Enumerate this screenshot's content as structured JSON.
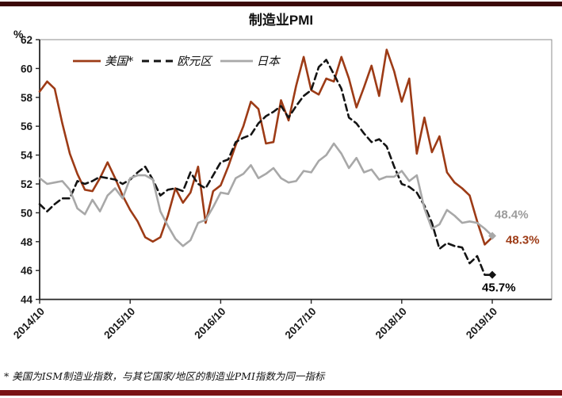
{
  "page": {
    "title": "制造业PMI",
    "footnote": "* 美国为ISM制造业指数，与其它国家/地区的制造业PMI指数为同一指标",
    "top_bar_color": "#3c080a",
    "bottom_bar_color": "#7a1315"
  },
  "chart_data": {
    "type": "line",
    "title": "制造业PMI",
    "ylabel": "%",
    "xlabel": "",
    "ylim": [
      44,
      62
    ],
    "yticks": [
      62,
      60,
      58,
      56,
      54,
      52,
      50,
      48,
      46,
      44
    ],
    "grid": false,
    "legend_position": "top-left-inside",
    "xticks": [
      "2014/10",
      "2015/10",
      "2016/10",
      "2017/10",
      "2018/10",
      "2019/10"
    ],
    "xtick_month_indices": [
      0,
      12,
      24,
      36,
      48,
      60
    ],
    "x_months": [
      "2014/10",
      "2014/11",
      "2014/12",
      "2015/01",
      "2015/02",
      "2015/03",
      "2015/04",
      "2015/05",
      "2015/06",
      "2015/07",
      "2015/08",
      "2015/09",
      "2015/10",
      "2015/11",
      "2015/12",
      "2016/01",
      "2016/02",
      "2016/03",
      "2016/04",
      "2016/05",
      "2016/06",
      "2016/07",
      "2016/08",
      "2016/09",
      "2016/10",
      "2016/11",
      "2016/12",
      "2017/01",
      "2017/02",
      "2017/03",
      "2017/04",
      "2017/05",
      "2017/06",
      "2017/07",
      "2017/08",
      "2017/09",
      "2017/10",
      "2017/11",
      "2017/12",
      "2018/01",
      "2018/02",
      "2018/03",
      "2018/04",
      "2018/05",
      "2018/06",
      "2018/07",
      "2018/08",
      "2018/09",
      "2018/10",
      "2018/11",
      "2018/12",
      "2019/01",
      "2019/02",
      "2019/03",
      "2019/04",
      "2019/05",
      "2019/06",
      "2019/07",
      "2019/08",
      "2019/09",
      "2019/10"
    ],
    "series": [
      {
        "name": "美国*",
        "color": "#9d3b16",
        "style": "solid",
        "end_marker": "none",
        "values": [
          58.4,
          59.1,
          58.6,
          56.2,
          54.1,
          52.7,
          51.6,
          51.5,
          52.4,
          53.5,
          52.4,
          51.2,
          50.2,
          49.4,
          48.3,
          48.0,
          48.3,
          49.8,
          51.7,
          50.7,
          51.4,
          53.2,
          49.3,
          51.5,
          51.9,
          53.2,
          54.7,
          56.0,
          57.7,
          57.2,
          54.8,
          54.9,
          57.8,
          56.4,
          58.8,
          60.8,
          58.5,
          58.2,
          59.3,
          59.1,
          60.8,
          59.3,
          57.3,
          58.7,
          60.2,
          58.1,
          61.3,
          59.8,
          57.7,
          59.3,
          54.1,
          56.6,
          54.2,
          55.3,
          52.8,
          52.1,
          51.7,
          51.2,
          49.4,
          47.8,
          48.3
        ]
      },
      {
        "name": "欧元区",
        "color": "#141414",
        "style": "dashed",
        "end_marker": "diamond",
        "values": [
          50.6,
          50.1,
          50.6,
          51.0,
          51.0,
          52.2,
          52.0,
          52.2,
          52.5,
          52.4,
          52.3,
          52.0,
          52.3,
          52.8,
          53.2,
          52.3,
          51.2,
          51.6,
          51.7,
          51.5,
          52.8,
          52.0,
          51.7,
          52.6,
          53.5,
          53.7,
          54.9,
          55.2,
          55.4,
          56.2,
          56.7,
          57.0,
          57.4,
          56.6,
          57.4,
          58.1,
          58.5,
          60.1,
          60.6,
          59.6,
          58.6,
          56.6,
          56.2,
          55.5,
          54.9,
          55.1,
          54.6,
          53.2,
          52.0,
          51.8,
          51.4,
          50.5,
          49.3,
          47.5,
          47.9,
          47.7,
          47.6,
          46.5,
          47.0,
          45.7,
          45.7
        ]
      },
      {
        "name": "日本",
        "color": "#a8a8a8",
        "style": "solid",
        "end_marker": "diamond",
        "values": [
          52.4,
          52.0,
          52.1,
          52.2,
          51.6,
          50.3,
          49.9,
          50.9,
          50.1,
          51.2,
          51.7,
          51.0,
          52.4,
          52.6,
          52.6,
          52.3,
          50.1,
          49.1,
          48.2,
          47.7,
          48.1,
          49.3,
          49.5,
          50.4,
          51.4,
          51.3,
          52.4,
          52.7,
          53.3,
          52.4,
          52.7,
          53.1,
          52.4,
          52.1,
          52.2,
          52.9,
          52.8,
          53.6,
          54.0,
          54.8,
          54.1,
          53.1,
          53.8,
          52.8,
          53.0,
          52.3,
          52.5,
          52.5,
          52.9,
          52.2,
          52.6,
          50.3,
          48.9,
          49.2,
          50.2,
          49.8,
          49.3,
          49.4,
          49.3,
          48.9,
          48.4
        ]
      }
    ],
    "annotations": [
      {
        "text": "48.4%",
        "series_index": 2,
        "value": 48.4,
        "color": "#9b9b9b"
      },
      {
        "text": "48.3%",
        "series_index": 0,
        "value": 48.3,
        "color": "#9d3b16"
      },
      {
        "text": "45.7%",
        "series_index": 1,
        "value": 45.7,
        "color": "#000000"
      }
    ]
  }
}
